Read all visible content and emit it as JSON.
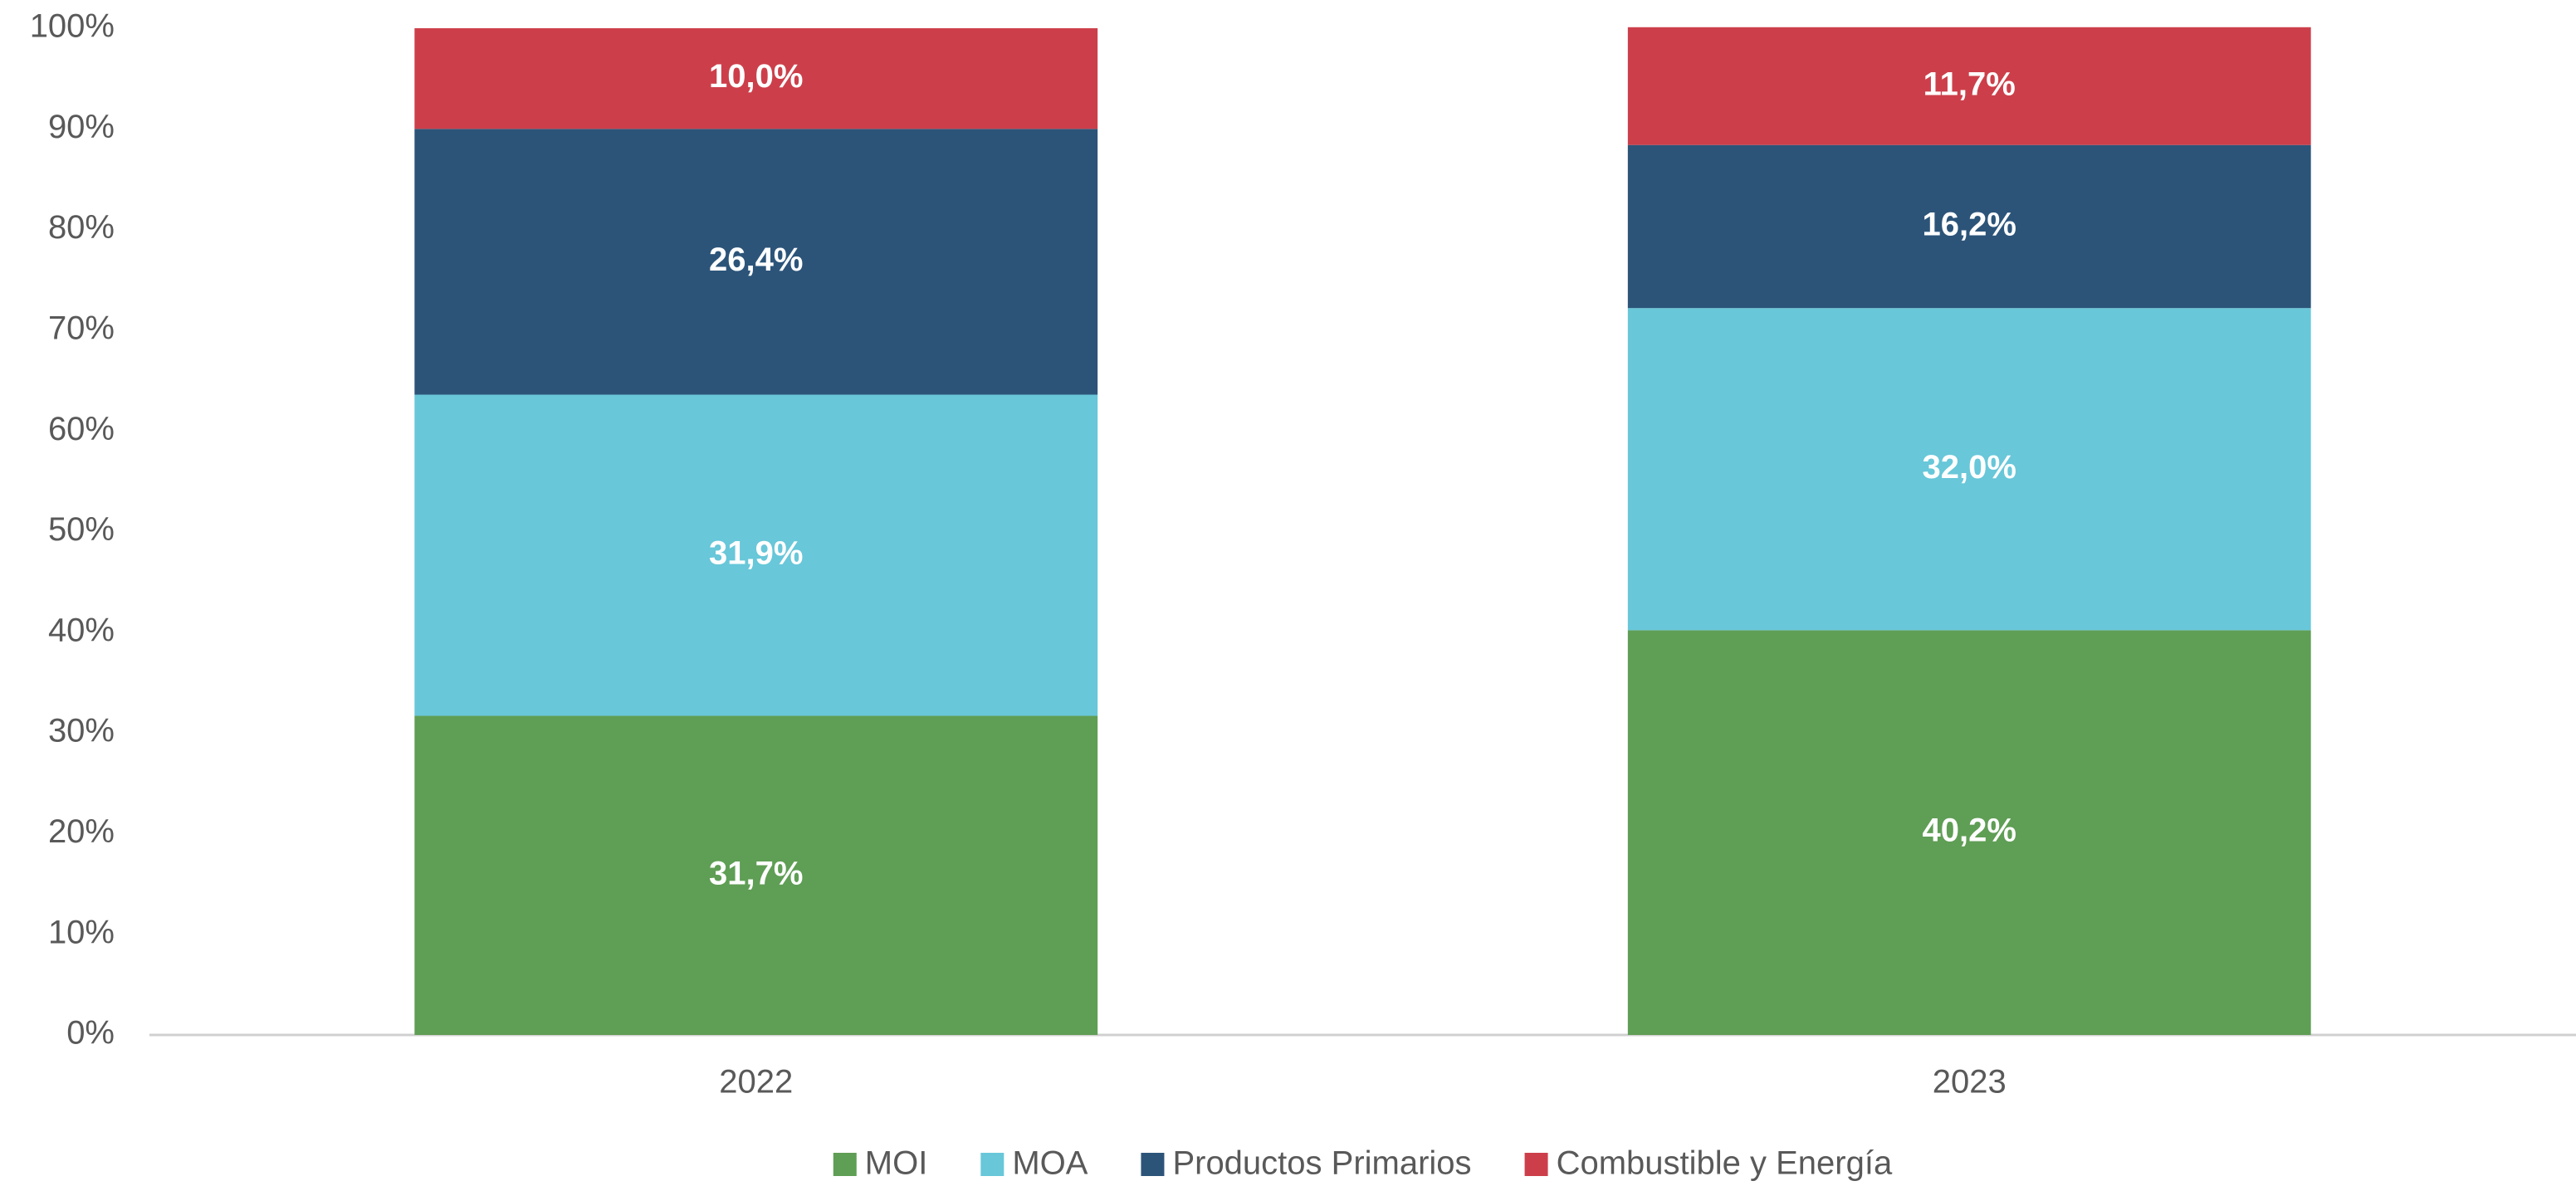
{
  "chart_data": {
    "type": "stacked_bar",
    "categories": [
      "2022",
      "2023"
    ],
    "series": [
      {
        "name": "MOI",
        "color": "#5f9e55",
        "values": [
          31.7,
          40.2
        ],
        "value_labels": [
          "31,7%",
          "40,2%"
        ]
      },
      {
        "name": "MOA",
        "color": "#68c7d9",
        "values": [
          31.9,
          32.0
        ],
        "value_labels": [
          "31,9%",
          "32,0%"
        ]
      },
      {
        "name": "Productos Primarios",
        "color": "#2c5479",
        "values": [
          26.4,
          16.2
        ],
        "value_labels": [
          "26,4%",
          "16,2%"
        ]
      },
      {
        "name": "Combustible y Energía",
        "color": "#cc3f4a",
        "values": [
          10.0,
          11.7
        ],
        "value_labels": [
          "10,0%",
          "11,7%"
        ]
      }
    ],
    "ylim": [
      0,
      100
    ],
    "yticks": [
      {
        "value": 0,
        "label": "0%"
      },
      {
        "value": 10,
        "label": "10%"
      },
      {
        "value": 20,
        "label": "20%"
      },
      {
        "value": 30,
        "label": "30%"
      },
      {
        "value": 40,
        "label": "40%"
      },
      {
        "value": 50,
        "label": "50%"
      },
      {
        "value": 60,
        "label": "60%"
      },
      {
        "value": 70,
        "label": "70%"
      },
      {
        "value": 80,
        "label": "80%"
      },
      {
        "value": 90,
        "label": "90%"
      },
      {
        "value": 100,
        "label": "100%"
      }
    ],
    "legend": "bottom"
  }
}
